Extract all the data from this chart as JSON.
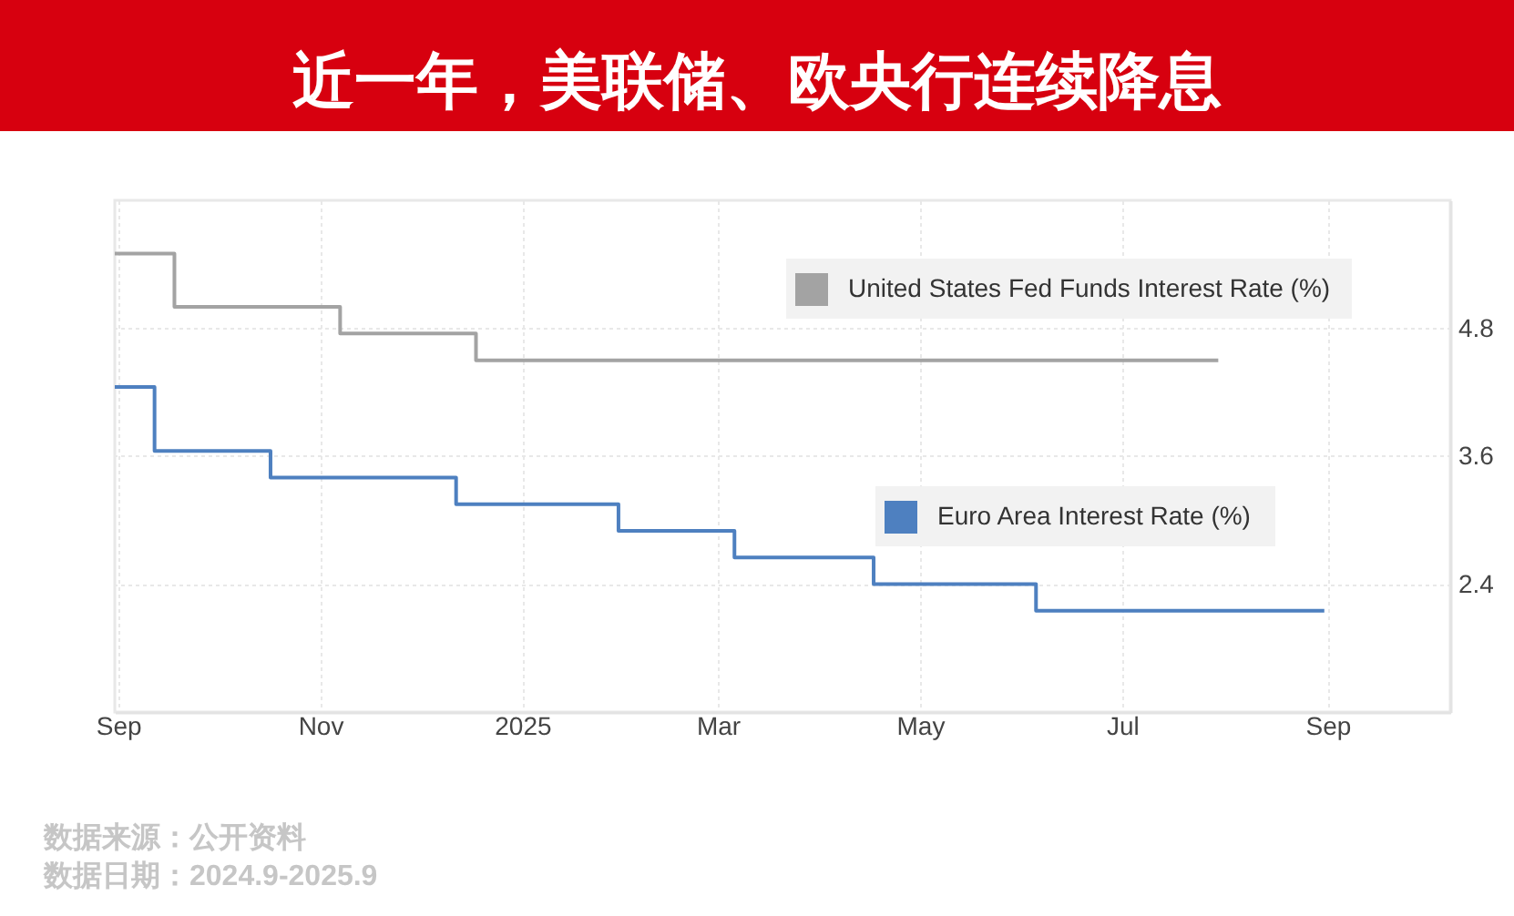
{
  "chart_data": {
    "type": "step",
    "title": "近一年，美联储、欧央行连续降息",
    "series": [
      {
        "name": "United States Fed Funds Interest Rate (%)",
        "color": "#a3a3a3",
        "x": [
          "2024-08-31",
          "2024-09-18",
          "2024-11-07",
          "2024-12-18",
          "2025-07-30"
        ],
        "values": [
          5.5,
          5.0,
          4.75,
          4.5,
          4.5
        ]
      },
      {
        "name": "Euro Area Interest Rate (%)",
        "color": "#4e80c0",
        "x": [
          "2024-08-31",
          "2024-09-12",
          "2024-10-17",
          "2024-12-12",
          "2025-01-30",
          "2025-03-06",
          "2025-04-17",
          "2025-06-05",
          "2025-08-31"
        ],
        "values": [
          4.25,
          3.65,
          3.4,
          3.15,
          2.9,
          2.65,
          2.4,
          2.15,
          2.15
        ]
      }
    ],
    "xlim": [
      "2024-08-31",
      "2025-10-08"
    ],
    "xticks": [
      {
        "value": "2024-09-01",
        "label": "Sep"
      },
      {
        "value": "2024-11-01",
        "label": "Nov"
      },
      {
        "value": "2025-01-01",
        "label": "2025"
      },
      {
        "value": "2025-03-01",
        "label": "Mar"
      },
      {
        "value": "2025-05-01",
        "label": "May"
      },
      {
        "value": "2025-07-01",
        "label": "Jul"
      },
      {
        "value": "2025-09-01",
        "label": "Sep"
      }
    ],
    "ylim": [
      1.2,
      6.0
    ],
    "yticks": [
      2.4,
      3.6,
      4.8
    ],
    "grid": true,
    "legend": "top right",
    "annotations": [
      "数据来源：公开资料",
      "数据日期：2024.9-2025.9"
    ]
  }
}
